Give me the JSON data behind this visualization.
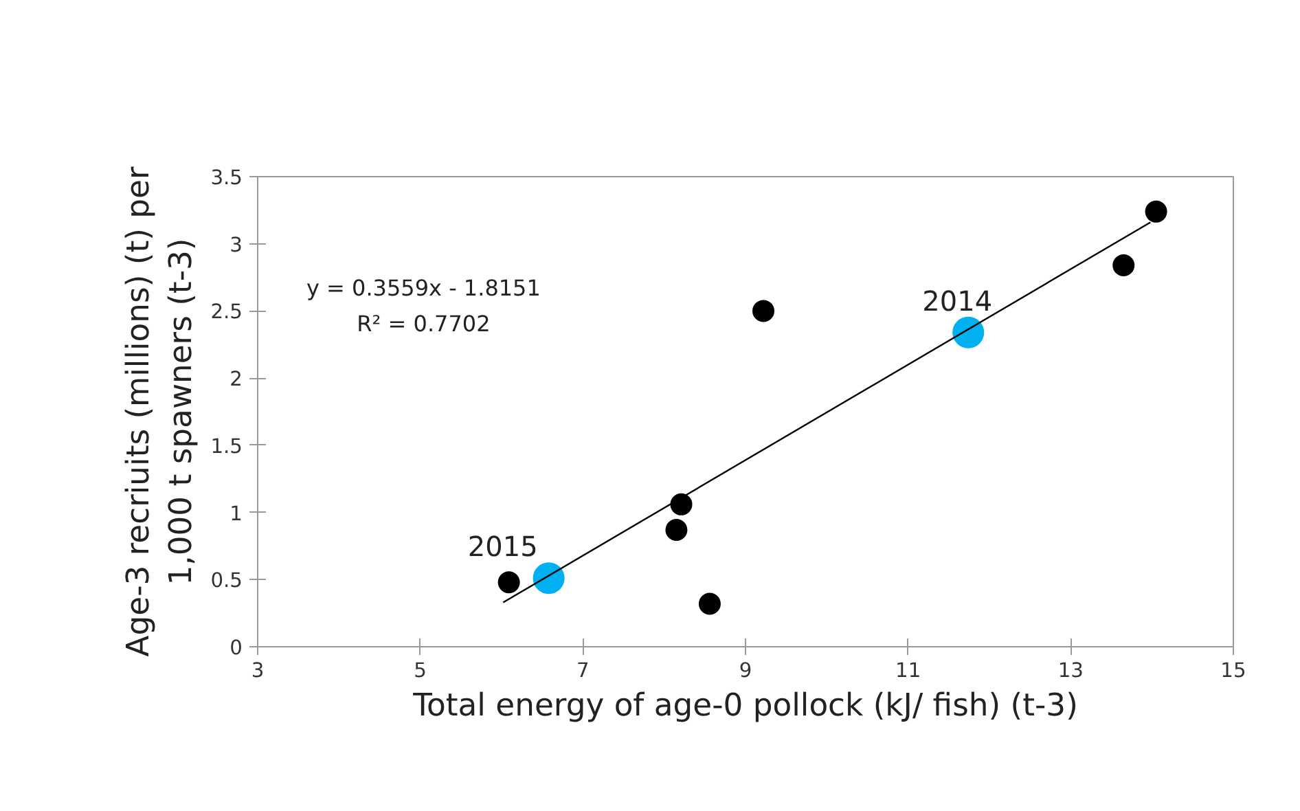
{
  "chart_data": {
    "type": "scatter",
    "xlabel": "Total energy of age-0 pollock (kJ/ fish) (t-3)",
    "ylabel": "Age-3 recriuits (millions) (t) per\n1,000 t spawners (t-3)",
    "series": [
      {
        "color": "#000000",
        "x": [
          6.09,
          8.21,
          8.15,
          8.56,
          9.22,
          13.65,
          14.05
        ],
        "values": [
          0.48,
          1.06,
          0.87,
          0.32,
          2.5,
          2.84,
          3.24
        ]
      },
      {
        "color": "#00b0f0",
        "x": [
          6.58,
          11.74
        ],
        "values": [
          0.51,
          2.34
        ]
      },
      {
        "type": "line",
        "marker": "none",
        "color": "#000000",
        "x": [
          6.02,
          13.98
        ],
        "values": [
          0.33,
          3.16
        ]
      }
    ],
    "xlim": [
      3,
      15
    ],
    "xticks": [
      3,
      5,
      7,
      9,
      11,
      13,
      15
    ],
    "ylim": [
      0,
      3.5
    ],
    "yticks": [
      0,
      0.5,
      1,
      1.5,
      2,
      2.5,
      3,
      3.5
    ],
    "grid": false,
    "marker": "circle",
    "annotations": [
      "y = 0.3559x - 1.8151",
      "R² = 0.7702",
      {
        "text": "2015",
        "x": 6.58,
        "y": 0.51
      },
      {
        "text": "2014",
        "x": 11.74,
        "y": 2.34
      }
    ]
  }
}
